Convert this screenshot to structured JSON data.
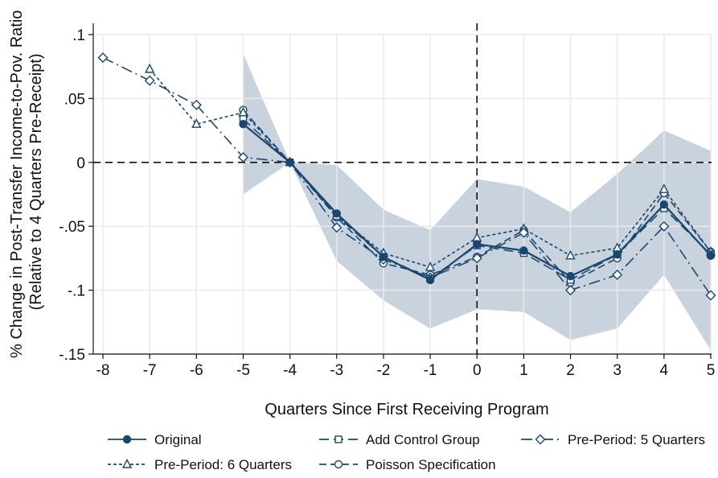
{
  "chart_data": {
    "type": "line",
    "xlabel": "Quarters Since First Receiving Program",
    "ylabel_lines": [
      "% Change in Post-Transfer Income-to-Pov. Ratio",
      "(Relative to 4 Quarters Pre-Receipt)"
    ],
    "xlim": [
      -8,
      5
    ],
    "ylim": [
      -0.15,
      0.1
    ],
    "x_ticks": [
      -8,
      -7,
      -6,
      -5,
      -4,
      -3,
      -2,
      -1,
      0,
      1,
      2,
      3,
      4,
      5
    ],
    "x_tick_labels": [
      "-8",
      "-7",
      "-6",
      "-5",
      "-4",
      "-3",
      "-2",
      "-1",
      "0",
      "1",
      "2",
      "3",
      "4",
      "5"
    ],
    "y_ticks": [
      0.1,
      0.05,
      0,
      -0.05,
      -0.1,
      -0.15
    ],
    "y_tick_labels": [
      ".1",
      ".05",
      "0",
      "-.05",
      "-.1",
      "-.15"
    ],
    "grid": true,
    "reference_lines": {
      "x": 0,
      "y": 0
    },
    "confidence_band": {
      "x": [
        -5,
        -4,
        -3,
        -2,
        -1,
        0,
        1,
        2,
        3,
        4,
        5
      ],
      "upper": [
        0.085,
        0.0,
        -0.002,
        -0.037,
        -0.053,
        -0.013,
        -0.019,
        -0.039,
        -0.009,
        0.025,
        0.009
      ],
      "lower": [
        -0.025,
        0.0,
        -0.077,
        -0.108,
        -0.13,
        -0.115,
        -0.117,
        -0.139,
        -0.13,
        -0.088,
        -0.147
      ]
    },
    "series": [
      {
        "name": "Original",
        "marker": "circle-filled",
        "dash": "solid",
        "x": [
          -5,
          -4,
          -3,
          -2,
          -1,
          0,
          1,
          2,
          3,
          4,
          5
        ],
        "y": [
          0.03,
          0.0,
          -0.04,
          -0.074,
          -0.092,
          -0.064,
          -0.069,
          -0.089,
          -0.072,
          -0.033,
          -0.073
        ]
      },
      {
        "name": "Add Control Group",
        "marker": "square-open",
        "dash": "longdash",
        "x": [
          -5,
          -4,
          -3,
          -2,
          -1,
          0,
          1,
          2,
          3,
          4,
          5
        ],
        "y": [
          0.034,
          0.0,
          -0.042,
          -0.074,
          -0.091,
          -0.065,
          -0.071,
          -0.092,
          -0.072,
          -0.036,
          -0.072
        ]
      },
      {
        "name": "Pre-Period: 5 Quarters",
        "marker": "diamond-open",
        "dash": "dashdot",
        "x": [
          -8,
          -7,
          -6,
          -5,
          -4,
          -3,
          -2,
          -1,
          0,
          1,
          2,
          3,
          4,
          5
        ],
        "y": [
          0.082,
          0.064,
          0.045,
          0.004,
          0.0,
          -0.051,
          -0.076,
          -0.09,
          -0.075,
          -0.055,
          -0.1,
          -0.088,
          -0.05,
          -0.104
        ]
      },
      {
        "name": "Pre-Period: 6 Quarters",
        "marker": "triangle-open",
        "dash": "shortdash",
        "x": [
          -7,
          -6,
          -5,
          -4,
          -3,
          -2,
          -1,
          0,
          1,
          2,
          3,
          4,
          5
        ],
        "y": [
          0.073,
          0.03,
          0.039,
          0.0,
          -0.042,
          -0.071,
          -0.082,
          -0.059,
          -0.052,
          -0.073,
          -0.067,
          -0.021,
          -0.07
        ]
      },
      {
        "name": "Poisson Specification",
        "marker": "circle-open",
        "dash": "mediumdash",
        "x": [
          -5,
          -4,
          -3,
          -2,
          -1,
          0,
          1,
          2,
          3,
          4,
          5
        ],
        "y": [
          0.041,
          0.0,
          -0.043,
          -0.079,
          -0.088,
          -0.074,
          -0.053,
          -0.094,
          -0.075,
          -0.024,
          -0.07
        ]
      }
    ],
    "legend": {
      "placement": "bottom",
      "entries": [
        "Original",
        "Add Control Group",
        "Pre-Period: 5 Quarters",
        "Pre-Period: 6 Quarters",
        "Poisson Specification"
      ]
    },
    "colors": {
      "line": "#1a476f",
      "band": "#b5c4d2",
      "grid": "#eaeaea",
      "background": "#ffffff"
    }
  }
}
